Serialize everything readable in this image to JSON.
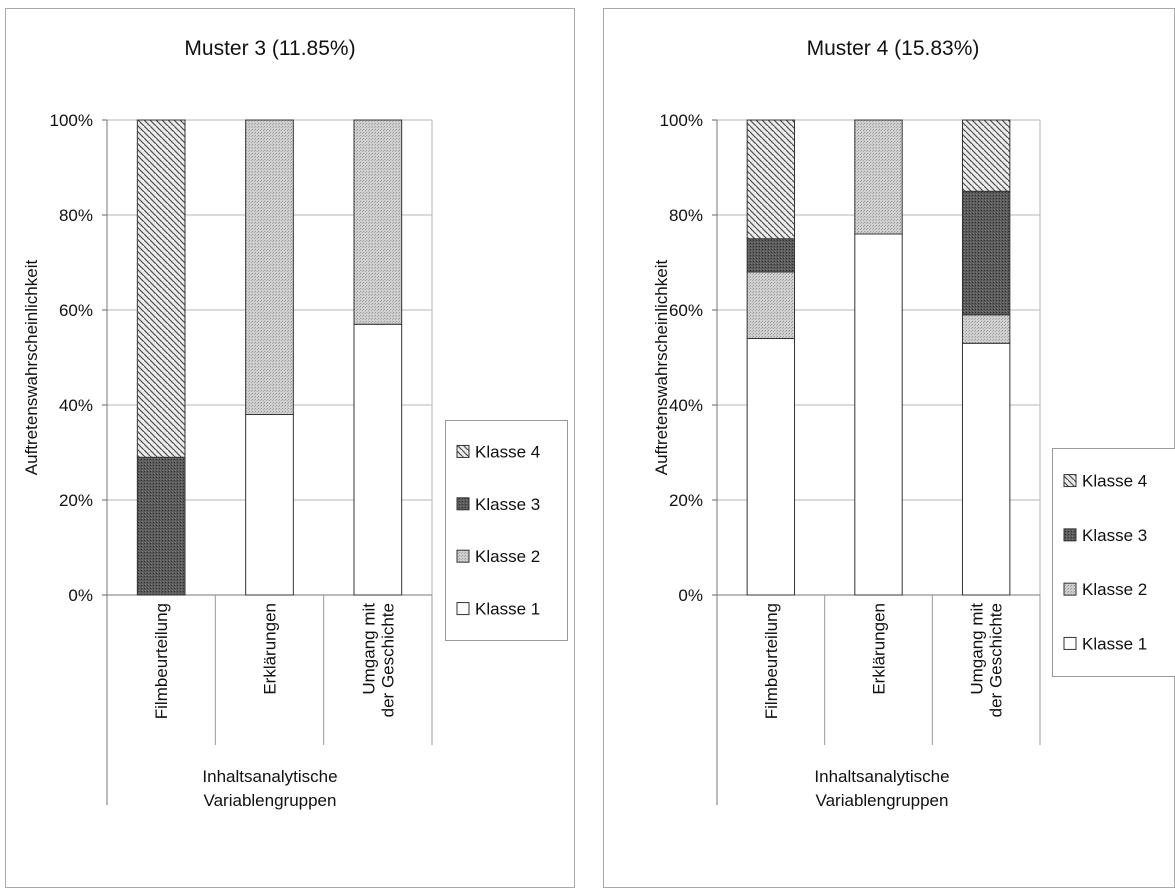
{
  "chart_data": [
    {
      "type": "bar",
      "stacked": true,
      "percent": true,
      "title": "Muster 3 (11.85%)",
      "ylabel": "Auftretenswahrscheinlichkeit",
      "xlabel": "Inhaltsanalytische Variablengruppen",
      "categories": [
        [
          "Filmbeurteilung"
        ],
        [
          "Erklärungen"
        ],
        [
          "Umgang mit",
          "der Geschichte"
        ]
      ],
      "series": [
        {
          "name": "Klasse 1",
          "values": [
            0,
            38,
            57
          ]
        },
        {
          "name": "Klasse 2",
          "values": [
            0,
            62,
            43
          ]
        },
        {
          "name": "Klasse 3",
          "values": [
            29,
            0,
            0
          ]
        },
        {
          "name": "Klasse 4",
          "values": [
            71,
            0,
            0
          ]
        }
      ],
      "ylim": [
        0,
        100
      ],
      "yticks": [
        "0%",
        "20%",
        "40%",
        "60%",
        "80%",
        "100%"
      ],
      "grid": true,
      "legend": "right"
    },
    {
      "type": "bar",
      "stacked": true,
      "percent": true,
      "title": "Muster 4 (15.83%)",
      "ylabel": "Auftretenswahrscheinlichkeit",
      "xlabel": "Inhaltsanalytische Variablengruppen",
      "categories": [
        [
          "Filmbeurteilung"
        ],
        [
          "Erklärungen"
        ],
        [
          "Umgang mit",
          "der Geschichte"
        ]
      ],
      "series": [
        {
          "name": "Klasse 1",
          "values": [
            54,
            76,
            53
          ]
        },
        {
          "name": "Klasse 2",
          "values": [
            14,
            24,
            6
          ]
        },
        {
          "name": "Klasse 3",
          "values": [
            7,
            0,
            26
          ]
        },
        {
          "name": "Klasse 4",
          "values": [
            25,
            0,
            15
          ]
        }
      ],
      "ylim": [
        0,
        100
      ],
      "yticks": [
        "0%",
        "20%",
        "40%",
        "60%",
        "80%",
        "100%"
      ],
      "grid": true,
      "legend": "right"
    }
  ],
  "colors": {
    "Klasse 1": "#ffffff",
    "Klasse 2": "#c4c4c4",
    "Klasse 3": "#5a5a5a",
    "Klasse 4": "#bdbdbd"
  }
}
